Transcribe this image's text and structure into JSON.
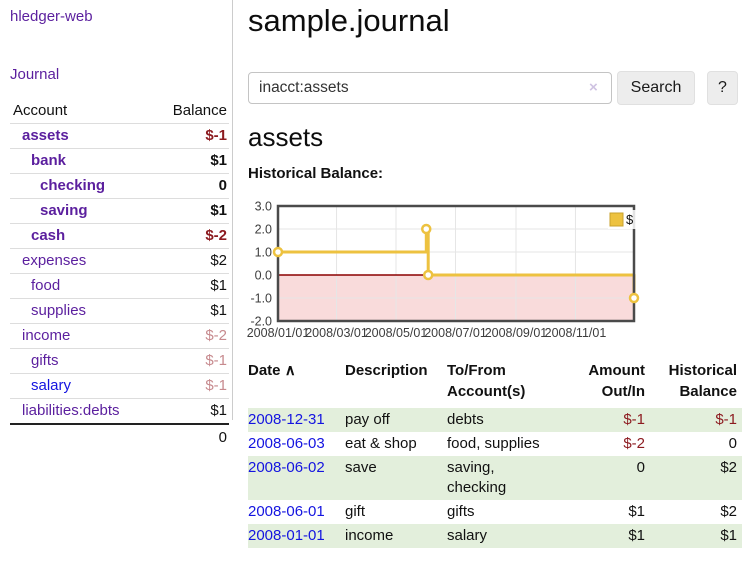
{
  "colors": {
    "link_purple": "#5b1f9e",
    "link_blue": "#1414e0",
    "negative_strong": "#8c1a1f",
    "negative_soft": "#c78a8e",
    "stripe_green": "#e3efdc"
  },
  "sidebar": {
    "brand": "hledger-web",
    "journal_label": "Journal",
    "table": {
      "account_header": "Account",
      "balance_header": "Balance",
      "accounts": [
        {
          "name": "assets",
          "balance": "$-1",
          "level": 1,
          "bold": true,
          "link_color": "purple",
          "balance_class": "neg-strong"
        },
        {
          "name": "bank",
          "balance": "$1",
          "level": 2,
          "bold": true,
          "link_color": "purple",
          "balance_class": ""
        },
        {
          "name": "checking",
          "balance": "0",
          "level": 3,
          "bold": true,
          "link_color": "purple",
          "balance_class": ""
        },
        {
          "name": "saving",
          "balance": "$1",
          "level": 3,
          "bold": true,
          "link_color": "purple",
          "balance_class": ""
        },
        {
          "name": "cash",
          "balance": "$-2",
          "level": 2,
          "bold": true,
          "link_color": "purple",
          "balance_class": "neg-strong"
        },
        {
          "name": "expenses",
          "balance": "$2",
          "level": 1,
          "bold": false,
          "link_color": "purple",
          "balance_class": ""
        },
        {
          "name": "food",
          "balance": "$1",
          "level": 2,
          "bold": false,
          "link_color": "purple",
          "balance_class": ""
        },
        {
          "name": "supplies",
          "balance": "$1",
          "level": 2,
          "bold": false,
          "link_color": "purple",
          "balance_class": ""
        },
        {
          "name": "income",
          "balance": "$-2",
          "level": 1,
          "bold": false,
          "link_color": "purple",
          "balance_class": "neg-soft"
        },
        {
          "name": "gifts",
          "balance": "$-1",
          "level": 2,
          "bold": false,
          "link_color": "purple",
          "balance_class": "neg-soft"
        },
        {
          "name": "salary",
          "balance": "$-1",
          "level": 2,
          "bold": false,
          "link_color": "blue",
          "balance_class": "neg-soft"
        },
        {
          "name": "liabilities:debts",
          "balance": "$1",
          "level": 1,
          "bold": false,
          "link_color": "purple",
          "balance_class": ""
        }
      ],
      "total": "0"
    }
  },
  "header": {
    "title": "sample.journal"
  },
  "search": {
    "value": "inacct:assets",
    "clear_icon": "×",
    "button_label": "Search",
    "help_label": "?"
  },
  "account_page": {
    "title": "assets",
    "chart_label": "Historical Balance:"
  },
  "chart_data": {
    "type": "line",
    "step": true,
    "title": "Historical Balance",
    "series": [
      {
        "name": "$",
        "color": "#EDC240",
        "points": [
          [
            "2008-01-01",
            1
          ],
          [
            "2008-06-01",
            2
          ],
          [
            "2008-06-03",
            0
          ],
          [
            "2008-12-31",
            -1
          ]
        ]
      }
    ],
    "x_range": [
      "2008-01-01",
      "2008-12-31"
    ],
    "x_ticks": [
      {
        "date": "2008-01-01",
        "label": "2008/01/01"
      },
      {
        "date": "2008-03-01",
        "label": "2008/03/01"
      },
      {
        "date": "2008-05-01",
        "label": "2008/05/01"
      },
      {
        "date": "2008-07-01",
        "label": "2008/07/01"
      },
      {
        "date": "2008-09-01",
        "label": "2008/09/01"
      },
      {
        "date": "2008-11-01",
        "label": "2008/11/01"
      }
    ],
    "y_ticks": [
      3.0,
      2.0,
      1.0,
      0.0,
      -1.0,
      -2.0
    ],
    "ylim": [
      -2,
      3
    ],
    "grid": true,
    "legend": {
      "label": "$",
      "position": "top-right"
    },
    "style": {
      "border_color": "#4a4a4a",
      "grid_color": "#e6e6e6",
      "zero_line_color": "#8b0000",
      "negative_region_color": "#f9dbdb",
      "marker_fill": "#ffffff",
      "tick_text_color": "#3d3d3d"
    }
  },
  "register": {
    "columns": {
      "date": "Date",
      "sort_indicator": "∧",
      "description": "Description",
      "accounts": "To/From Account(s)",
      "amount": "Amount Out/In",
      "balance": "Historical Balance"
    },
    "rows": [
      {
        "date": "2008-12-31",
        "description": "pay off",
        "accounts": "debts",
        "amount": "$-1",
        "amount_negative": true,
        "balance": "$-1",
        "balance_negative": true
      },
      {
        "date": "2008-06-03",
        "description": "eat & shop",
        "accounts": "food, supplies",
        "amount": "$-2",
        "amount_negative": true,
        "balance": "0",
        "balance_negative": false
      },
      {
        "date": "2008-06-02",
        "description": "save",
        "accounts": "saving, checking",
        "amount": "0",
        "amount_negative": false,
        "balance": "$2",
        "balance_negative": false
      },
      {
        "date": "2008-06-01",
        "description": "gift",
        "accounts": "gifts",
        "amount": "$1",
        "amount_negative": false,
        "balance": "$2",
        "balance_negative": false
      },
      {
        "date": "2008-01-01",
        "description": "income",
        "accounts": "salary",
        "amount": "$1",
        "amount_negative": false,
        "balance": "$1",
        "balance_negative": false
      }
    ]
  }
}
